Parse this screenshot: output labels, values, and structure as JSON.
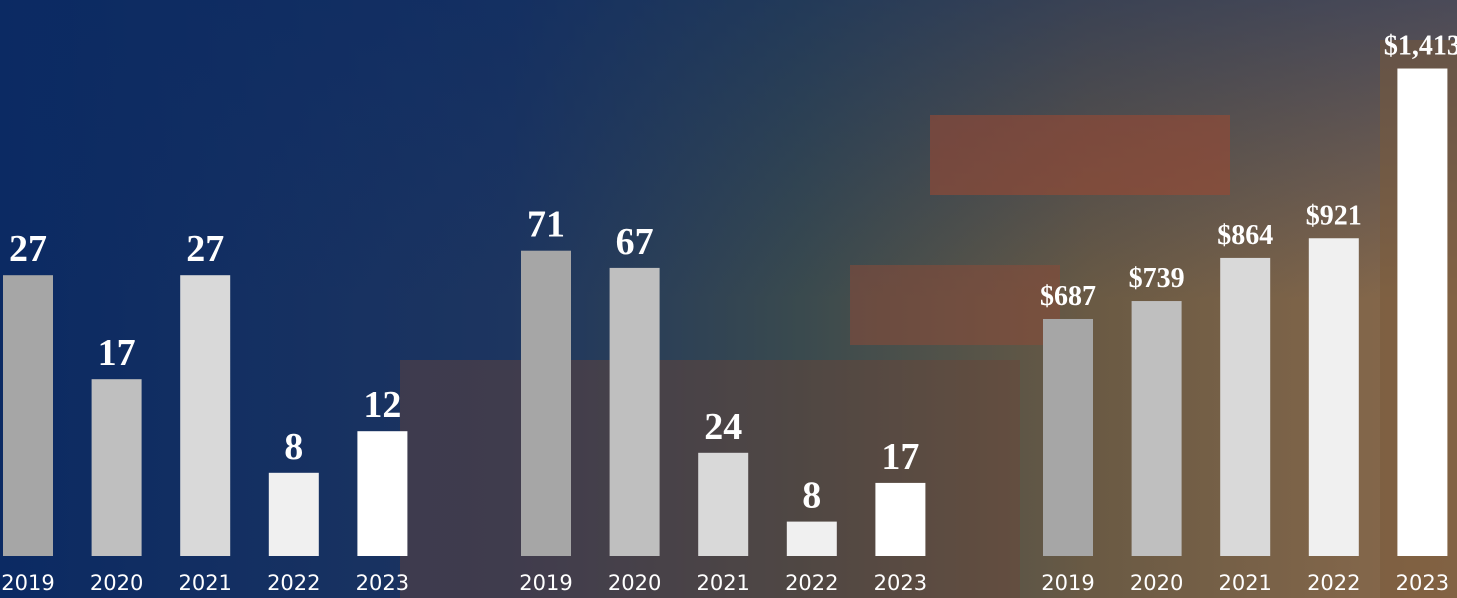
{
  "chart_data": [
    {
      "type": "bar",
      "categories": [
        "2019",
        "2020",
        "2021",
        "2022",
        "2023"
      ],
      "values": [
        27,
        17,
        27,
        8,
        12
      ],
      "colors": [
        "#a6a6a6",
        "#bfbfbf",
        "#d9d9d9",
        "#f0f0f0",
        "#ffffff"
      ]
    },
    {
      "type": "bar",
      "categories": [
        "2019",
        "2020",
        "2021",
        "2022",
        "2023"
      ],
      "values": [
        71,
        67,
        24,
        8,
        17
      ],
      "colors": [
        "#a6a6a6",
        "#bfbfbf",
        "#d9d9d9",
        "#f0f0f0",
        "#ffffff"
      ]
    },
    {
      "type": "bar",
      "categories": [
        "2019",
        "2020",
        "2021",
        "2022",
        "2023"
      ],
      "values": [
        687,
        739,
        864,
        921,
        1413
      ],
      "value_labels": [
        "$687",
        "$739",
        "$864",
        "$921",
        "$1,413"
      ],
      "colors": [
        "#a6a6a6",
        "#bfbfbf",
        "#d9d9d9",
        "#f0f0f0",
        "#ffffff"
      ]
    }
  ]
}
